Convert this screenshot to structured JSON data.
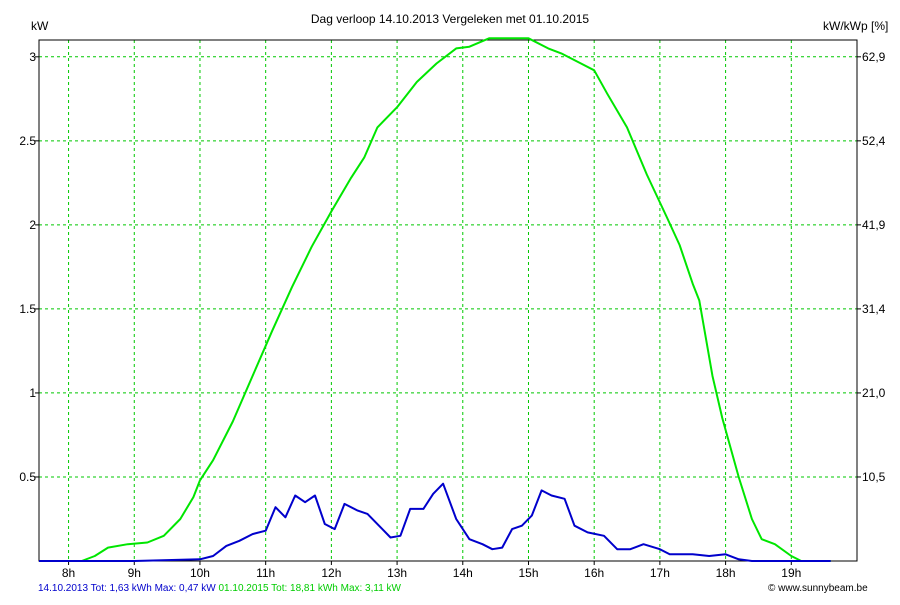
{
  "chart_data": {
    "type": "line",
    "title": "Dag  verloop 14.10.2013   Vergeleken met 01.10.2015",
    "ylabel_left": "kW",
    "ylabel_right": "kW/kWp [%]",
    "x_tick_labels": [
      "8h",
      "9h",
      "10h",
      "11h",
      "12h",
      "13h",
      "14h",
      "15h",
      "16h",
      "17h",
      "18h",
      "19h"
    ],
    "x_tick_hours": [
      8,
      9,
      10,
      11,
      12,
      13,
      14,
      15,
      16,
      17,
      18,
      19
    ],
    "xlim": [
      7.55,
      20.0
    ],
    "ylim": [
      0,
      3.1
    ],
    "y_ticks_left": [
      {
        "value": 0.5,
        "label": "0.5"
      },
      {
        "value": 1.0,
        "label": "1"
      },
      {
        "value": 1.5,
        "label": "1.5"
      },
      {
        "value": 2.0,
        "label": "2"
      },
      {
        "value": 2.5,
        "label": "2.5"
      },
      {
        "value": 3.0,
        "label": "3"
      }
    ],
    "y_ticks_right": [
      {
        "value": 0.5,
        "label": "10,5"
      },
      {
        "value": 1.0,
        "label": "21,0"
      },
      {
        "value": 1.5,
        "label": "31,4"
      },
      {
        "value": 2.0,
        "label": "41,9"
      },
      {
        "value": 2.5,
        "label": "52,4"
      },
      {
        "value": 3.0,
        "label": "62,9"
      }
    ],
    "grid": true,
    "series": [
      {
        "color": "#00e600",
        "points": [
          [
            7.55,
            0.0
          ],
          [
            8.2,
            0.0
          ],
          [
            8.4,
            0.03
          ],
          [
            8.6,
            0.08
          ],
          [
            8.9,
            0.1
          ],
          [
            9.2,
            0.11
          ],
          [
            9.45,
            0.15
          ],
          [
            9.7,
            0.25
          ],
          [
            9.9,
            0.38
          ],
          [
            10.0,
            0.48
          ],
          [
            10.2,
            0.6
          ],
          [
            10.5,
            0.83
          ],
          [
            10.8,
            1.1
          ],
          [
            11.1,
            1.37
          ],
          [
            11.4,
            1.63
          ],
          [
            11.7,
            1.87
          ],
          [
            12.0,
            2.08
          ],
          [
            12.3,
            2.28
          ],
          [
            12.5,
            2.4
          ],
          [
            12.7,
            2.58
          ],
          [
            13.0,
            2.7
          ],
          [
            13.3,
            2.85
          ],
          [
            13.6,
            2.96
          ],
          [
            13.9,
            3.05
          ],
          [
            14.1,
            3.06
          ],
          [
            14.4,
            3.11
          ],
          [
            14.7,
            3.11
          ],
          [
            15.0,
            3.11
          ],
          [
            15.3,
            3.05
          ],
          [
            15.5,
            3.02
          ],
          [
            15.8,
            2.96
          ],
          [
            16.0,
            2.92
          ],
          [
            16.2,
            2.78
          ],
          [
            16.5,
            2.58
          ],
          [
            16.8,
            2.3
          ],
          [
            17.1,
            2.05
          ],
          [
            17.3,
            1.88
          ],
          [
            17.5,
            1.65
          ],
          [
            17.6,
            1.55
          ],
          [
            17.8,
            1.1
          ],
          [
            17.95,
            0.85
          ],
          [
            18.2,
            0.5
          ],
          [
            18.4,
            0.25
          ],
          [
            18.55,
            0.13
          ],
          [
            18.75,
            0.1
          ],
          [
            19.0,
            0.03
          ],
          [
            19.15,
            0.0
          ],
          [
            19.6,
            0.0
          ]
        ]
      },
      {
        "color": "#0000cc",
        "points": [
          [
            7.55,
            0.0
          ],
          [
            9.0,
            0.0
          ],
          [
            10.0,
            0.01
          ],
          [
            10.2,
            0.03
          ],
          [
            10.4,
            0.09
          ],
          [
            10.6,
            0.12
          ],
          [
            10.8,
            0.16
          ],
          [
            11.0,
            0.18
          ],
          [
            11.15,
            0.32
          ],
          [
            11.3,
            0.26
          ],
          [
            11.45,
            0.39
          ],
          [
            11.6,
            0.35
          ],
          [
            11.75,
            0.39
          ],
          [
            11.9,
            0.22
          ],
          [
            12.05,
            0.19
          ],
          [
            12.2,
            0.34
          ],
          [
            12.4,
            0.3
          ],
          [
            12.55,
            0.28
          ],
          [
            12.75,
            0.2
          ],
          [
            12.9,
            0.14
          ],
          [
            13.05,
            0.15
          ],
          [
            13.2,
            0.31
          ],
          [
            13.4,
            0.31
          ],
          [
            13.55,
            0.4
          ],
          [
            13.7,
            0.46
          ],
          [
            13.9,
            0.25
          ],
          [
            14.1,
            0.13
          ],
          [
            14.3,
            0.1
          ],
          [
            14.45,
            0.07
          ],
          [
            14.6,
            0.08
          ],
          [
            14.75,
            0.19
          ],
          [
            14.9,
            0.21
          ],
          [
            15.05,
            0.27
          ],
          [
            15.2,
            0.42
          ],
          [
            15.35,
            0.39
          ],
          [
            15.55,
            0.37
          ],
          [
            15.7,
            0.21
          ],
          [
            15.9,
            0.17
          ],
          [
            16.15,
            0.15
          ],
          [
            16.35,
            0.07
          ],
          [
            16.55,
            0.07
          ],
          [
            16.75,
            0.1
          ],
          [
            17.0,
            0.07
          ],
          [
            17.15,
            0.04
          ],
          [
            17.5,
            0.04
          ],
          [
            17.75,
            0.03
          ],
          [
            18.0,
            0.04
          ],
          [
            18.2,
            0.01
          ],
          [
            18.4,
            0.0
          ],
          [
            19.6,
            0.0
          ]
        ]
      }
    ],
    "footer": {
      "blue_text": "14.10.2013 Tot: 1,63 kWh Max: 0,47 kW",
      "green_text": "01.10.2015 Tot: 18,81 kWh Max: 3,11 kW",
      "blue_color": "#0000cc",
      "green_color": "#00cc00",
      "credit": "© www.sunnybeam.be"
    }
  }
}
